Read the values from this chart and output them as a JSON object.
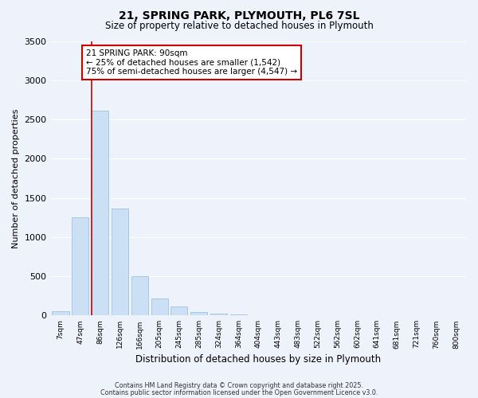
{
  "title": "21, SPRING PARK, PLYMOUTH, PL6 7SL",
  "subtitle": "Size of property relative to detached houses in Plymouth",
  "xlabel": "Distribution of detached houses by size in Plymouth",
  "ylabel": "Number of detached properties",
  "bar_color": "#cce0f5",
  "bar_edge_color": "#a8c8e8",
  "bg_color": "#eef2fb",
  "grid_color": "#ffffff",
  "categories": [
    "7sqm",
    "47sqm",
    "86sqm",
    "126sqm",
    "166sqm",
    "205sqm",
    "245sqm",
    "285sqm",
    "324sqm",
    "364sqm",
    "404sqm",
    "443sqm",
    "483sqm",
    "522sqm",
    "562sqm",
    "602sqm",
    "641sqm",
    "681sqm",
    "721sqm",
    "760sqm",
    "800sqm"
  ],
  "values": [
    50,
    1250,
    2610,
    1360,
    500,
    215,
    110,
    40,
    20,
    10,
    5,
    3,
    2,
    1,
    1,
    0,
    0,
    0,
    0,
    0,
    0
  ],
  "ylim": [
    0,
    3500
  ],
  "yticks": [
    0,
    500,
    1000,
    1500,
    2000,
    2500,
    3000,
    3500
  ],
  "vline_color": "#cc0000",
  "vline_bar_index": 2,
  "annotation_title": "21 SPRING PARK: 90sqm",
  "annotation_line2": "← 25% of detached houses are smaller (1,542)",
  "annotation_line3": "75% of semi-detached houses are larger (4,547) →",
  "annotation_box_color": "#ffffff",
  "annotation_box_edge": "#cc0000",
  "footer1": "Contains HM Land Registry data © Crown copyright and database right 2025.",
  "footer2": "Contains public sector information licensed under the Open Government Licence v3.0.",
  "fig_width": 6.0,
  "fig_height": 5.0,
  "dpi": 100
}
